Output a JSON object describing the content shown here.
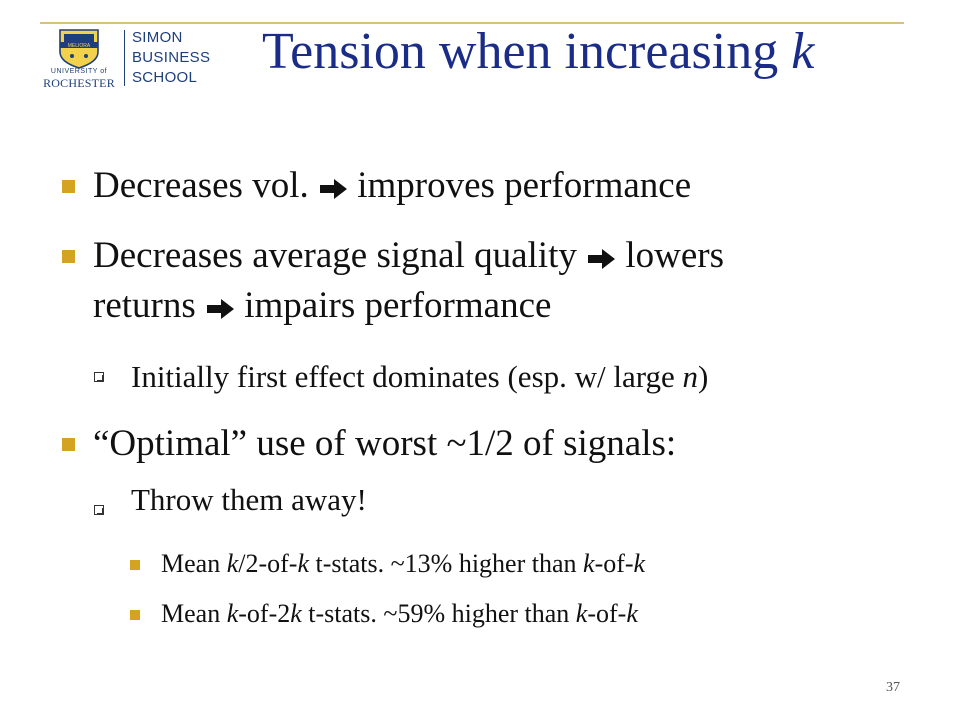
{
  "logo": {
    "seal_text": "MELIORA",
    "university_of": "UNIVERSITY of",
    "university_name": "ROCHESTER",
    "school_lines": [
      "SIMON",
      "BUSINESS",
      "SCHOOL"
    ]
  },
  "title": {
    "text": "Tension when increasing ",
    "var": "k"
  },
  "colors": {
    "title": "#1a2c87",
    "bullet": "#d4a322",
    "rule": "#d8c27a",
    "logo": "#1e3f7a"
  },
  "bullets": {
    "b1": {
      "a": "Decreases vol. ",
      "b": " improves performance"
    },
    "b2": {
      "a": "Decreases average signal quality ",
      "b": " lowers",
      "c": "returns ",
      "d": " impairs performance"
    },
    "s1": {
      "a": "Initially first effect dominates (esp. w/ large ",
      "n": "n",
      "b": ")"
    },
    "b3": {
      "a": "“Optimal” use of worst ~1/2 of signals:"
    },
    "s2": {
      "a": "Throw them away!"
    },
    "t1": {
      "a": "Mean ",
      "k1": "k",
      "b": "/2-of-",
      "k2": "k",
      "c": " t-stats. ~13% higher than ",
      "k3": "k",
      "d": "-of-",
      "k4": "k"
    },
    "t2": {
      "a": "Mean ",
      "k1": "k",
      "b": "-of-2",
      "k2": "k",
      "c": " t-stats. ~59% higher than ",
      "k3": "k",
      "d": "-of-",
      "k4": "k"
    }
  },
  "icons": {
    "bullet": "square-bullet",
    "sub_bullet": "box-bullet",
    "arrow": "right-arrow-icon"
  },
  "page_number": "37"
}
